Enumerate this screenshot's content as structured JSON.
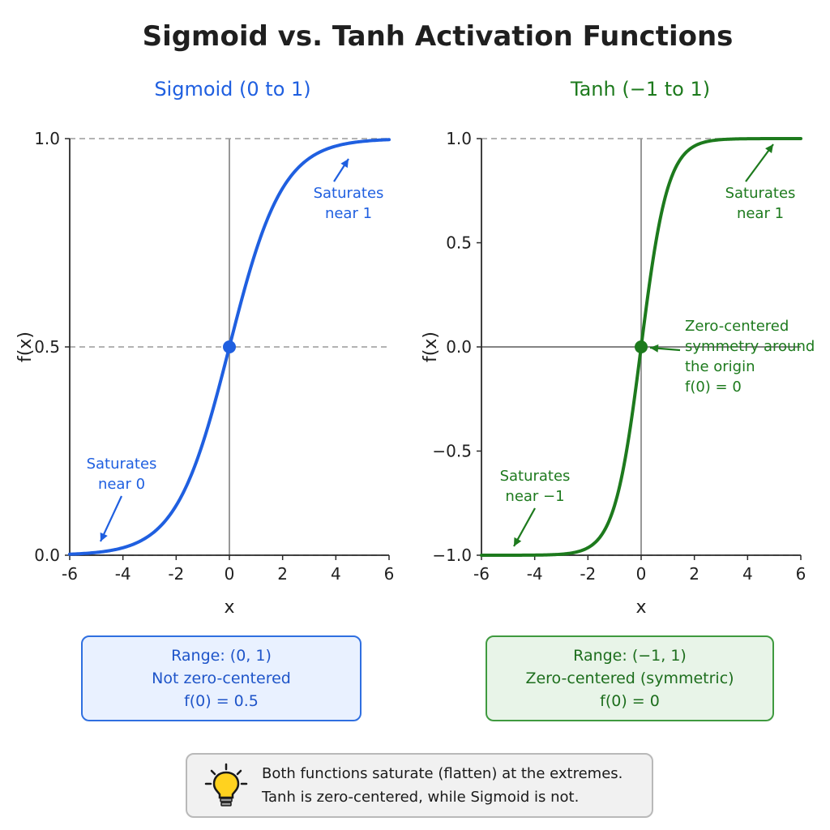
{
  "title": "Sigmoid vs. Tanh Activation Functions",
  "chart_data": [
    {
      "type": "line",
      "title": "Sigmoid (0 to 1)",
      "function": "sigmoid",
      "color": "#1f5fe0",
      "xlabel": "x",
      "ylabel": "f(x)",
      "xlim": [
        -6,
        6
      ],
      "ylim": [
        0,
        1
      ],
      "xticks": [
        "-6",
        "-4",
        "-2",
        "0",
        "2",
        "4",
        "6"
      ],
      "xtick_values": [
        -6,
        -4,
        -2,
        0,
        2,
        4,
        6
      ],
      "yticks": [
        "0.0",
        "0.5",
        "1.0"
      ],
      "ytick_values": [
        0,
        0.5,
        1
      ],
      "dashed_reference_lines": [
        0,
        0.5,
        1
      ],
      "series": [
        {
          "x": [
            -6,
            -5,
            -4,
            -3,
            -2,
            -1,
            0,
            1,
            2,
            3,
            4,
            5,
            6
          ],
          "y": [
            0.0025,
            0.0067,
            0.018,
            0.047,
            0.119,
            0.269,
            0.5,
            0.731,
            0.881,
            0.953,
            0.982,
            0.9933,
            0.9975
          ]
        }
      ],
      "highlight_point": {
        "x": 0,
        "y": 0.5
      },
      "annotations": [
        {
          "text": [
            "Saturates",
            "near 1"
          ],
          "arrow_to": {
            "x": 4.4,
            "y": 0.955
          }
        },
        {
          "text": [
            "Saturates",
            "near 0"
          ],
          "arrow_to": {
            "x": -4.8,
            "y": 0.03
          }
        }
      ]
    },
    {
      "type": "line",
      "title": "Tanh (−1 to 1)",
      "function": "tanh",
      "color": "#1d7a1d",
      "xlabel": "x",
      "ylabel": "f(x)",
      "xlim": [
        -6,
        6
      ],
      "ylim": [
        -1,
        1
      ],
      "xticks": [
        "-6",
        "-4",
        "-2",
        "0",
        "2",
        "4",
        "6"
      ],
      "xtick_values": [
        -6,
        -4,
        -2,
        0,
        2,
        4,
        6
      ],
      "yticks": [
        "−1.0",
        "−0.5",
        "0.0",
        "0.5",
        "1.0"
      ],
      "ytick_values": [
        -1,
        -0.5,
        0,
        0.5,
        1
      ],
      "dashed_reference_lines": [
        -1,
        1
      ],
      "series": [
        {
          "x": [
            -6,
            -5,
            -4,
            -3,
            -2,
            -1,
            0,
            1,
            2,
            3,
            4,
            5,
            6
          ],
          "y": [
            -0.99999,
            -0.9999,
            -0.9993,
            -0.995,
            -0.964,
            -0.762,
            0,
            0.762,
            0.964,
            0.995,
            0.9993,
            0.9999,
            0.99999
          ]
        }
      ],
      "highlight_point": {
        "x": 0,
        "y": 0
      },
      "annotations": [
        {
          "text": [
            "Saturates",
            "near 1"
          ],
          "arrow_to": {
            "x": 5,
            "y": 0.94
          }
        },
        {
          "text": [
            "Zero-centered",
            "symmetry around",
            "the origin",
            "f(0) = 0"
          ],
          "arrow_to": {
            "x": 0.35,
            "y": 0
          }
        },
        {
          "text": [
            "Saturates",
            "near −1"
          ],
          "arrow_to": {
            "x": -4.8,
            "y": -0.95
          }
        }
      ]
    }
  ],
  "summary_boxes": {
    "sigmoid": [
      "Range: (0, 1)",
      "Not zero-centered",
      "f(0) = 0.5"
    ],
    "tanh": [
      "Range: (−1, 1)",
      "Zero-centered (symmetric)",
      "f(0) = 0"
    ]
  },
  "note": {
    "icon": "lightbulb-icon",
    "lines": [
      "Both functions saturate (flatten) at the extremes.",
      "Tanh is zero-centered, while Sigmoid is not."
    ]
  }
}
